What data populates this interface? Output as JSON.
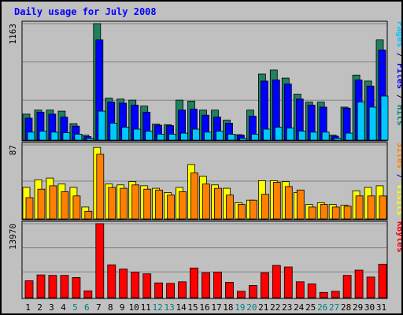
{
  "chart_data": {
    "title": "Daily usage for July 2008",
    "type": "bar",
    "categories": [
      "1",
      "2",
      "3",
      "4",
      "5",
      "6",
      "7",
      "8",
      "9",
      "10",
      "11",
      "12",
      "13",
      "14",
      "15",
      "16",
      "17",
      "18",
      "19",
      "20",
      "21",
      "22",
      "23",
      "24",
      "25",
      "26",
      "27",
      "28",
      "29",
      "30",
      "31"
    ],
    "weekend_days": [
      "5",
      "6",
      "12",
      "13",
      "19",
      "20",
      "26",
      "27"
    ],
    "panels": [
      {
        "name": "hits-files-pages",
        "ymax_label": "1163",
        "ymax": 1163,
        "legend": [
          {
            "text": "Pages",
            "color": "#00c8ff"
          },
          {
            "text": " / ",
            "color": "#000080"
          },
          {
            "text": "Files",
            "color": "#0000ff"
          },
          {
            "text": " / ",
            "color": "#000080"
          },
          {
            "text": "Hits",
            "color": "#008080"
          }
        ],
        "series": [
          {
            "name": "Hits",
            "color": "#208060",
            "values": [
              260,
              300,
              300,
              290,
              165,
              50,
              1163,
              420,
              410,
              400,
              340,
              160,
              155,
              400,
              390,
              300,
              300,
              200,
              55,
              300,
              660,
              700,
              620,
              460,
              380,
              380,
              50,
              330,
              650,
              590,
              1000
            ]
          },
          {
            "name": "Files",
            "color": "#0000ff",
            "values": [
              220,
              280,
              260,
              230,
              140,
              35,
              1000,
              380,
              370,
              350,
              280,
              150,
              145,
              300,
              310,
              250,
              230,
              170,
              50,
              240,
              590,
              600,
              560,
              410,
              350,
              330,
              40,
              320,
              600,
              540,
              900
            ]
          },
          {
            "name": "Pages",
            "color": "#00c8ff",
            "values": [
              80,
              90,
              80,
              75,
              60,
              20,
              290,
              170,
              130,
              110,
              90,
              60,
              60,
              70,
              110,
              80,
              90,
              60,
              20,
              60,
              110,
              130,
              120,
              90,
              80,
              80,
              20,
              70,
              380,
              330,
              440
            ]
          }
        ]
      },
      {
        "name": "visits-sites",
        "ymax_label": "87",
        "ymax": 87,
        "legend": [
          {
            "text": "Sites",
            "color": "#ff8000"
          },
          {
            "text": " / ",
            "color": "#000080"
          },
          {
            "text": "Visits",
            "color": "#ffff00"
          }
        ],
        "series": [
          {
            "name": "Visits",
            "color": "#ffff00",
            "values": [
              37,
              46,
              48,
              41,
              37,
              14,
              84,
              41,
              40,
              44,
              39,
              36,
              31,
              37,
              64,
              50,
              40,
              36,
              19,
              22,
              45,
              45,
              44,
              31,
              17,
              19,
              17,
              16,
              33,
              37,
              39
            ]
          },
          {
            "name": "Sites",
            "color": "#ff8000",
            "values": [
              25,
              35,
              39,
              32,
              27,
              9,
              76,
              37,
              36,
              40,
              35,
              34,
              28,
              32,
              54,
              41,
              36,
              28,
              17,
              22,
              29,
              43,
              38,
              34,
              14,
              17,
              14,
              15,
              27,
              27,
              27
            ]
          }
        ]
      },
      {
        "name": "kbytes",
        "ymax_label": "13970",
        "ymax": 13970,
        "legend": [
          {
            "text": "KBytes",
            "color": "#ff0000"
          }
        ],
        "series": [
          {
            "name": "KBytes",
            "color": "#ff0000",
            "values": [
              3200,
              4300,
              4200,
              4200,
              3800,
              1300,
              13970,
              6200,
              5400,
              4800,
              4500,
              2800,
              2700,
              3000,
              5600,
              4700,
              4800,
              2900,
              1200,
              2300,
              4700,
              6100,
              5800,
              3000,
              2600,
              1000,
              1200,
              4200,
              5200,
              3900,
              6300
            ]
          }
        ]
      }
    ]
  }
}
